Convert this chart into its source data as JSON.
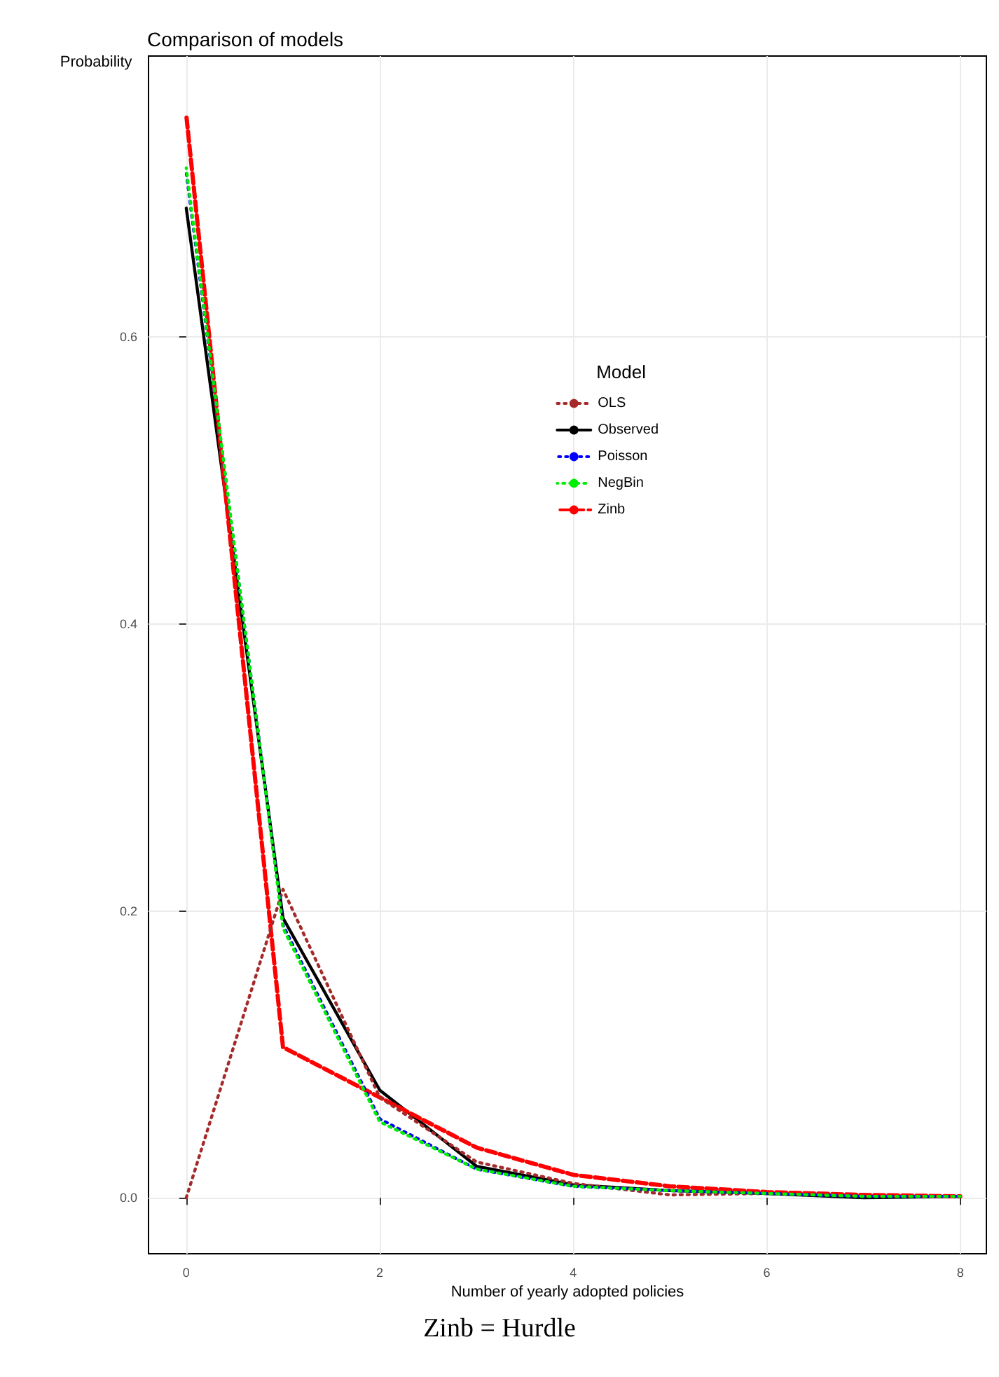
{
  "chart_data": {
    "type": "line",
    "title": "Comparison of models",
    "xlabel": "Number of yearly adopted policies",
    "ylabel": "Probability",
    "legend_title": "Model",
    "legend": "right",
    "grid": true,
    "marker": "none",
    "x": [
      0,
      1,
      2,
      3,
      4,
      5,
      6,
      7,
      8
    ],
    "xlim": [
      -0.39,
      8.27
    ],
    "xticks": [
      0,
      2,
      4,
      6,
      8
    ],
    "ylim": [
      -0.039,
      0.796
    ],
    "yticks": [
      {
        "value": 0,
        "label": "0.0"
      },
      {
        "value": 0.2,
        "label": "0.2"
      },
      {
        "value": 0.4,
        "label": "0.4"
      },
      {
        "value": 0.6,
        "label": "0.6"
      }
    ],
    "series": [
      {
        "name": "OLS",
        "color": "#a52a2a",
        "line_style": "dotted",
        "values": [
          0.0,
          0.215,
          0.07,
          0.025,
          0.01,
          0.002,
          0.003,
          0.001,
          0.001
        ]
      },
      {
        "name": "Observed",
        "color": "#000000",
        "line_style": "solid",
        "values": [
          0.69,
          0.195,
          0.075,
          0.022,
          0.009,
          0.005,
          0.003,
          0.0,
          0.001
        ]
      },
      {
        "name": "Poisson",
        "color": "#0000ff",
        "line_style": "dotted",
        "values": [
          0.715,
          0.19,
          0.055,
          0.02,
          0.008,
          0.005,
          0.003,
          0.001,
          0.001
        ]
      },
      {
        "name": "NegBin",
        "color": "#00ee00",
        "line_style": "dotted",
        "values": [
          0.718,
          0.188,
          0.053,
          0.02,
          0.008,
          0.005,
          0.003,
          0.001,
          0.001
        ]
      },
      {
        "name": "Zinb",
        "color": "#ff0000",
        "line_style": "dashed",
        "values": [
          0.755,
          0.105,
          0.07,
          0.035,
          0.016,
          0.008,
          0.004,
          0.002,
          0.001
        ]
      }
    ],
    "annotations": [
      "Zinb = Hurdle"
    ]
  }
}
